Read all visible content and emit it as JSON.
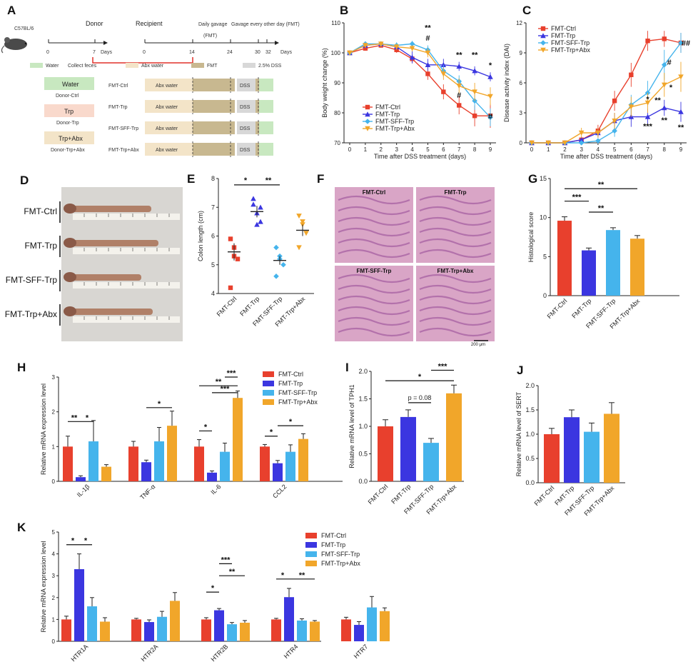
{
  "panel_letters": [
    "A",
    "B",
    "C",
    "D",
    "E",
    "F",
    "G",
    "H",
    "I",
    "J",
    "K"
  ],
  "groups": [
    "FMT-Ctrl",
    "FMT-Trp",
    "FMT-SFF-Trp",
    "FMT-Trp+Abx"
  ],
  "colors": {
    "ctrl": "#e8402d",
    "trp": "#3b36e0",
    "sff": "#45b4ec",
    "abx": "#f1a62a"
  },
  "schematic": {
    "mouse_label": "C57BL/6",
    "donor": "Donor",
    "recipient": "Recipient",
    "daily_gavage": "Daily gavage",
    "daily_gavage_sub": "(FMT)",
    "gavage_every": "Gavage every other day (FMT)",
    "days": "Days",
    "donor_ticks": [
      "0",
      "7"
    ],
    "recipient_ticks": [
      "0",
      "14",
      "24",
      "30",
      "32"
    ],
    "collect_feces": "Collect feces",
    "legend": [
      "Water",
      "Abx water",
      "FMT",
      "2.5% DSS"
    ],
    "donor_groups": [
      {
        "box": "Water",
        "name": "Donor-Ctrl"
      },
      {
        "box": "Trp",
        "name": "Donor-Trp"
      },
      {
        "box": "Trp+Abx",
        "name": "Donor-Trp+Abx"
      }
    ],
    "recipient_rows": [
      "FMT-Ctrl",
      "FMT-Trp",
      "FMT-SFF-Trp",
      "FMT-Trp+Abx"
    ],
    "abx_water": "Abx water",
    "dss": "DSS"
  },
  "photos": {
    "colon_rows": [
      "FMT-Ctrl",
      "FMT-Trp",
      "FMT-SFF-Trp",
      "FMT-Trp+Abx"
    ],
    "histo_titles": [
      "FMT-Ctrl",
      "FMT-Trp",
      "FMT-SFF-Trp",
      "FMT-Trp+Abx"
    ],
    "scale_bar": "200 μm"
  },
  "chart_data": [
    {
      "panel": "B",
      "type": "line",
      "xlabel": "Time after DSS treatment (days)",
      "ylabel": "Body weight change (%)",
      "x": [
        0,
        1,
        2,
        3,
        4,
        5,
        6,
        7,
        8,
        9
      ],
      "xlim": [
        0,
        9
      ],
      "ylim": [
        70,
        110
      ],
      "yticks": [
        70,
        80,
        90,
        100,
        110
      ],
      "series": [
        {
          "name": "FMT-Ctrl",
          "values": [
            100,
            101.5,
            102.5,
            101,
            98,
            93,
            87,
            82.5,
            79,
            79
          ],
          "err": [
            0.5,
            0.8,
            0.8,
            1,
            1.5,
            2,
            2.5,
            3,
            3.5,
            4
          ]
        },
        {
          "name": "FMT-Trp",
          "values": [
            100,
            102.5,
            103,
            102,
            98.5,
            96,
            96,
            95.5,
            94,
            92
          ],
          "err": [
            0.5,
            0.8,
            0.8,
            1,
            2,
            2,
            2,
            1.5,
            1.5,
            1.5
          ]
        },
        {
          "name": "FMT-SFF-Trp",
          "values": [
            100,
            103,
            103,
            102.5,
            103,
            101,
            94,
            90.5,
            84,
            78.5
          ],
          "err": [
            0.5,
            0.8,
            0.8,
            1,
            1,
            1.5,
            2,
            2,
            3,
            3
          ]
        },
        {
          "name": "FMT-Trp+Abx",
          "values": [
            100,
            102.5,
            103,
            102,
            101.5,
            100,
            93,
            89,
            87,
            85.5
          ],
          "err": [
            0.5,
            0.8,
            0.8,
            1,
            1,
            1.5,
            2,
            2.5,
            3,
            3
          ]
        }
      ],
      "annotations": [
        "**",
        "#",
        "**",
        "**",
        "*",
        "#",
        "#"
      ]
    },
    {
      "panel": "C",
      "type": "line",
      "xlabel": "Time after DSS treatment (days)",
      "ylabel": "Disease activity index (DAI)",
      "x": [
        0,
        1,
        2,
        3,
        4,
        5,
        6,
        7,
        8,
        9
      ],
      "xlim": [
        0,
        9
      ],
      "ylim": [
        0,
        12
      ],
      "yticks": [
        0,
        3,
        6,
        9,
        12
      ],
      "series": [
        {
          "name": "FMT-Ctrl",
          "values": [
            0,
            0,
            0,
            0.3,
            1.2,
            4.2,
            6.8,
            10.2,
            10.4,
            10
          ],
          "err": [
            0,
            0,
            0,
            0.3,
            0.6,
            1,
            1.2,
            1,
            0.8,
            1
          ]
        },
        {
          "name": "FMT-Trp",
          "values": [
            0,
            0,
            0,
            0.3,
            1,
            2.2,
            2.6,
            2.6,
            3.5,
            3.1
          ],
          "err": [
            0,
            0,
            0,
            0.3,
            0.5,
            0.8,
            1,
            0.8,
            0.8,
            1
          ]
        },
        {
          "name": "FMT-SFF-Trp",
          "values": [
            0,
            0,
            0,
            0,
            0.2,
            1.2,
            3.8,
            5,
            7.8,
            10
          ],
          "err": [
            0,
            0,
            0,
            0,
            0.2,
            0.6,
            1,
            1.2,
            1.5,
            1
          ]
        },
        {
          "name": "FMT-Trp+Abx",
          "values": [
            0,
            0,
            0,
            1,
            1,
            2.2,
            3.6,
            4,
            5.8,
            6.6
          ],
          "err": [
            0,
            0,
            0,
            0.5,
            0.5,
            0.8,
            1,
            1,
            1.2,
            1.5
          ]
        }
      ],
      "annotations": [
        "*",
        "***",
        "**",
        "**",
        "*",
        "**",
        "#",
        "##"
      ]
    },
    {
      "panel": "E",
      "type": "scatter",
      "ylabel": "Colon length (cm)",
      "ylim": [
        4,
        8
      ],
      "yticks": [
        4,
        5,
        6,
        7,
        8
      ],
      "categories": [
        "FMT-Ctrl",
        "FMT-Trp",
        "FMT-SFF-Trp",
        "FMT-Trp+Abx"
      ],
      "means": [
        5.45,
        6.85,
        5.15,
        6.2
      ],
      "sem": [
        0.3,
        0.2,
        0.15,
        0.2
      ],
      "points": [
        [
          5.9,
          5.6,
          5.2,
          4.2,
          5.3
        ],
        [
          7.1,
          6.8,
          6.5,
          7.3,
          6.4,
          7.0
        ],
        [
          5.6,
          5.3,
          5.0,
          4.6,
          5.2
        ],
        [
          6.7,
          6.4,
          6.1,
          5.6,
          6.5
        ]
      ],
      "annotations": [
        "*",
        "**"
      ]
    },
    {
      "panel": "G",
      "type": "bar",
      "ylabel": "Histological score",
      "ylim": [
        0,
        15
      ],
      "yticks": [
        0,
        5,
        10,
        15
      ],
      "categories": [
        "FMT-Ctrl",
        "FMT-Trp",
        "FMT-SFF-Trp",
        "FMT-Trp+Abx"
      ],
      "values": [
        9.6,
        5.8,
        8.4,
        7.3
      ],
      "err": [
        0.5,
        0.3,
        0.3,
        0.4
      ],
      "annotations": [
        "***",
        "**",
        "**"
      ]
    },
    {
      "panel": "H",
      "type": "bar",
      "ylabel": "Relative mRNA expression level",
      "ylim": [
        0,
        3
      ],
      "yticks": [
        0,
        1,
        2,
        3
      ],
      "categories": [
        "IL-1β",
        "TNF-α",
        "IL-6",
        "CCL2"
      ],
      "series": [
        {
          "name": "FMT-Ctrl",
          "values": [
            1.0,
            1.0,
            1.0,
            1.0
          ],
          "err": [
            0.3,
            0.15,
            0.2,
            0.06
          ]
        },
        {
          "name": "FMT-Trp",
          "values": [
            0.12,
            0.55,
            0.25,
            0.52
          ],
          "err": [
            0.04,
            0.06,
            0.05,
            0.08
          ]
        },
        {
          "name": "FMT-SFF-Trp",
          "values": [
            1.15,
            1.15,
            0.85,
            0.85
          ],
          "err": [
            0.6,
            0.4,
            0.25,
            0.2
          ]
        },
        {
          "name": "FMT-Trp+Abx",
          "values": [
            0.42,
            1.6,
            2.4,
            1.22
          ],
          "err": [
            0.06,
            0.42,
            0.2,
            0.15
          ]
        }
      ],
      "annotations": [
        "**",
        "*",
        "*",
        "*",
        "**",
        "***",
        "***",
        "*",
        "*"
      ]
    },
    {
      "panel": "I",
      "type": "bar",
      "ylabel": "Relative mRNA level of TPH1",
      "ylim": [
        0,
        2
      ],
      "yticks": [
        0,
        0.5,
        1.0,
        1.5,
        2.0
      ],
      "categories": [
        "FMT-Ctrl",
        "FMT-Trp",
        "FMT-SFF-Trp",
        "FMT-Trp+Abx"
      ],
      "values": [
        1.0,
        1.17,
        0.7,
        1.6
      ],
      "err": [
        0.12,
        0.13,
        0.08,
        0.15
      ],
      "annotations": [
        "*",
        "***",
        "p = 0.08"
      ]
    },
    {
      "panel": "J",
      "type": "bar",
      "ylabel": "Relative mRNA level of SERT",
      "ylim": [
        0,
        2
      ],
      "yticks": [
        0,
        0.5,
        1.0,
        1.5,
        2.0
      ],
      "categories": [
        "FMT-Ctrl",
        "FMT-Trp",
        "FMT-SFF-Trp",
        "FMT-Trp+Abx"
      ],
      "values": [
        1.0,
        1.35,
        1.05,
        1.42
      ],
      "err": [
        0.12,
        0.15,
        0.18,
        0.23
      ]
    },
    {
      "panel": "K",
      "type": "bar",
      "ylabel": "Relative mRNA expression level",
      "ylim": [
        0,
        5
      ],
      "yticks": [
        0,
        1,
        2,
        3,
        4,
        5
      ],
      "categories": [
        "HTR1A",
        "HTR2A",
        "HTR2B",
        "HTR4",
        "HTR7"
      ],
      "series": [
        {
          "name": "FMT-Ctrl",
          "values": [
            1.0,
            1.0,
            1.0,
            1.0,
            1.0
          ],
          "err": [
            0.15,
            0.05,
            0.08,
            0.05,
            0.1
          ]
        },
        {
          "name": "FMT-Trp",
          "values": [
            3.3,
            0.88,
            1.42,
            2.02,
            0.75
          ],
          "err": [
            0.7,
            0.1,
            0.08,
            0.4,
            0.15
          ]
        },
        {
          "name": "FMT-SFF-Trp",
          "values": [
            1.6,
            1.12,
            0.78,
            0.95,
            1.55
          ],
          "err": [
            0.4,
            0.25,
            0.08,
            0.08,
            0.5
          ]
        },
        {
          "name": "FMT-Trp+Abx",
          "values": [
            0.9,
            1.85,
            0.85,
            0.9,
            1.38
          ],
          "err": [
            0.18,
            0.38,
            0.1,
            0.05,
            0.15
          ]
        }
      ],
      "annotations": [
        "*",
        "*",
        "*",
        "***",
        "**",
        "*",
        "**"
      ]
    }
  ]
}
